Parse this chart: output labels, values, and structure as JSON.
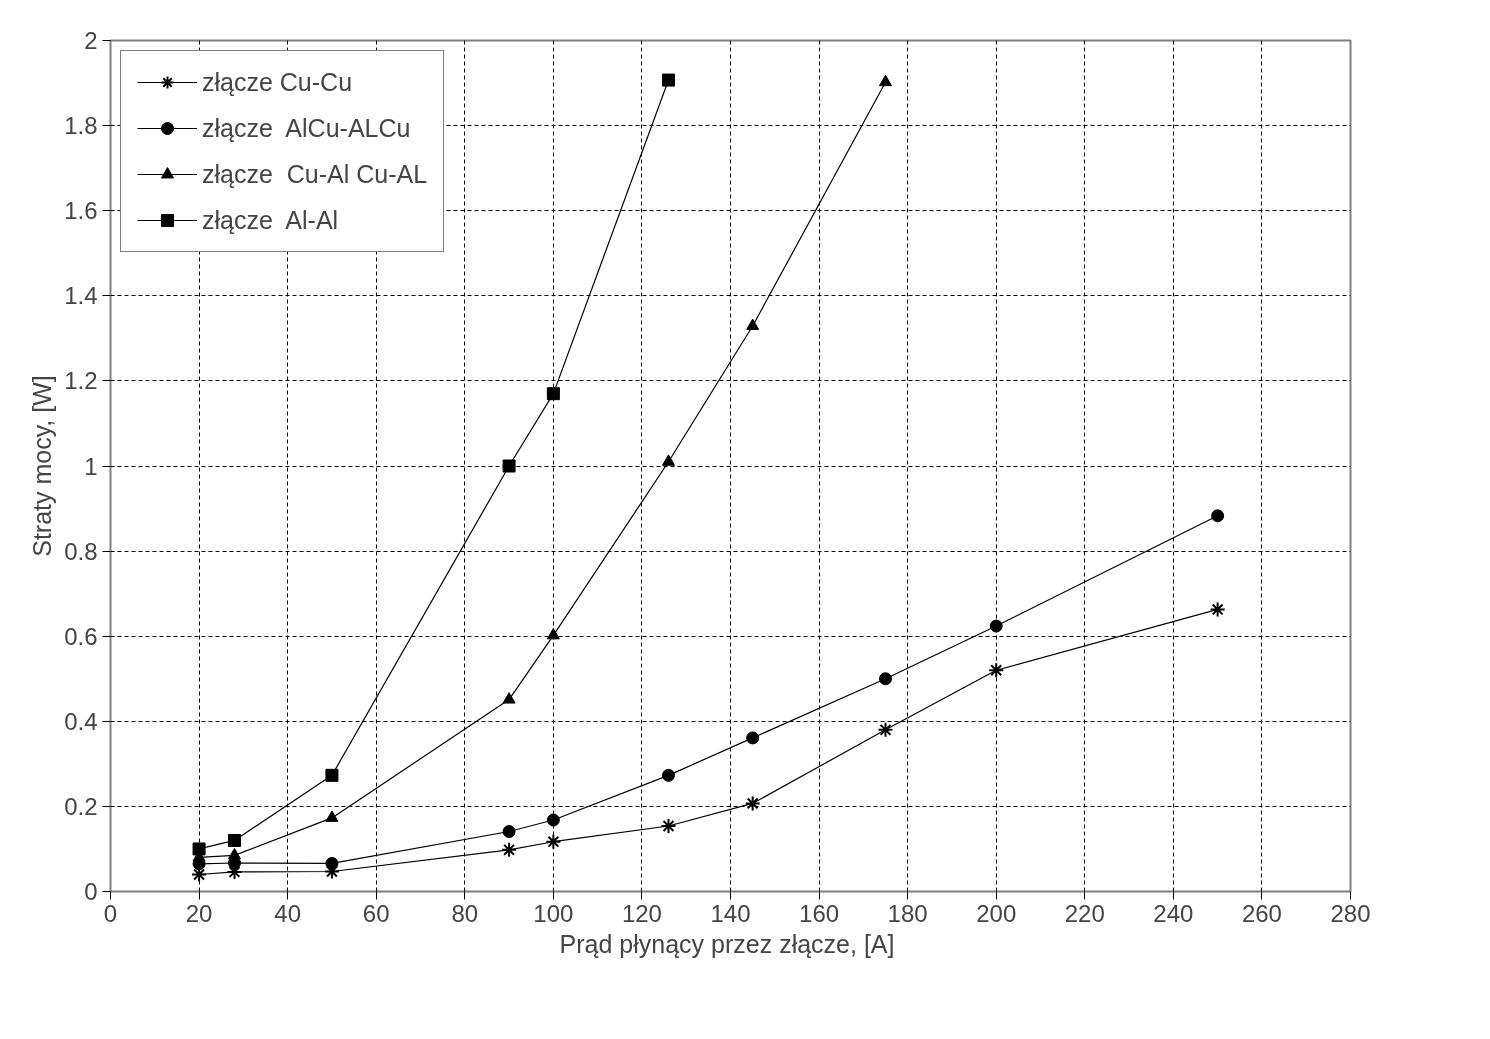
{
  "chart_data": {
    "type": "line",
    "xlabel": "Prąd  płynący przez złącze, [A]",
    "ylabel": "Straty mocy, [W]",
    "x": [
      20,
      28,
      50,
      90,
      100,
      126,
      145,
      175,
      200,
      250
    ],
    "series": [
      {
        "name": "złącze Cu-Cu",
        "color": "#000000",
        "marker": "cross",
        "values": [
          0.04,
          0.046,
          0.047,
          0.098,
          0.117,
          0.154,
          0.207,
          0.38,
          0.52,
          0.663
        ]
      },
      {
        "name": "złącze  AlCu-ALCu",
        "color": "#000000",
        "marker": "circle",
        "values": [
          0.065,
          0.067,
          0.066,
          0.141,
          0.168,
          0.273,
          0.361,
          0.5,
          0.624,
          0.883
        ]
      },
      {
        "name": "złącze  Cu-Al Cu-AL",
        "color": "#000000",
        "marker": "triangle",
        "x": [
          20,
          28,
          50,
          90,
          100,
          126,
          145,
          175
        ],
        "values": [
          0.08,
          0.085,
          0.173,
          0.451,
          0.602,
          1.01,
          1.329,
          1.902
        ]
      },
      {
        "name": "złącze  Al-Al",
        "color": "#000000",
        "marker": "square",
        "x": [
          20,
          28,
          50,
          90,
          100,
          126
        ],
        "values": [
          0.1,
          0.12,
          0.273,
          1.0,
          1.17,
          1.907
        ]
      }
    ],
    "xlim": [
      0,
      280
    ],
    "xticks": [
      0,
      20,
      40,
      60,
      80,
      100,
      120,
      140,
      160,
      180,
      200,
      220,
      240,
      260,
      280
    ],
    "ylim": [
      0,
      2
    ],
    "yticks": [
      0,
      0.2,
      0.4,
      0.6,
      0.8,
      1,
      1.2,
      1.4,
      1.6,
      1.8,
      2
    ],
    "grid": true,
    "legend": "top left",
    "line_style": "solid"
  }
}
